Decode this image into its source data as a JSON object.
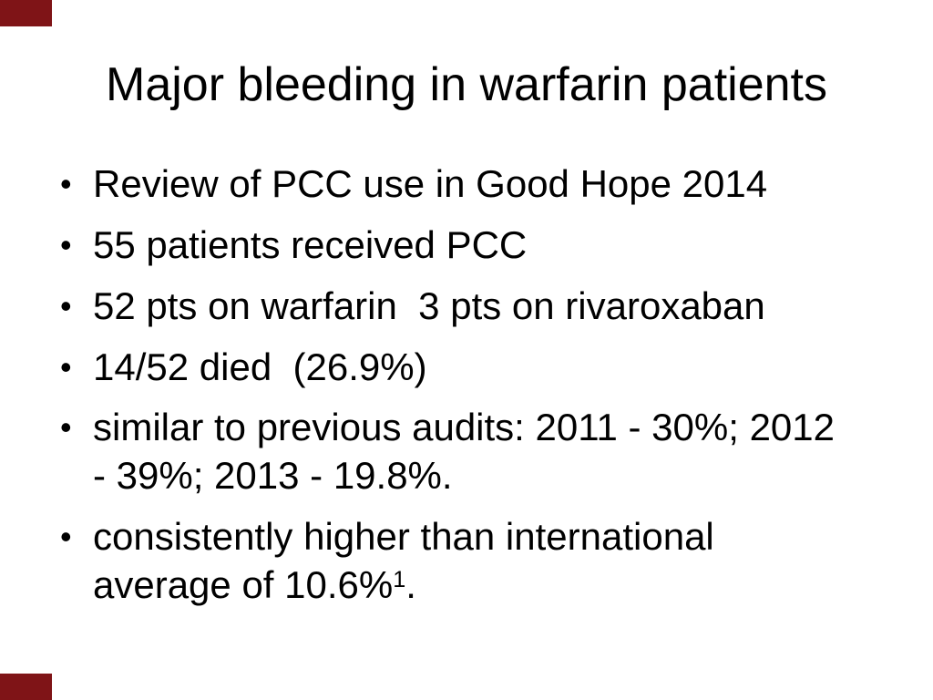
{
  "slide": {
    "title": "Major bleeding in warfarin patients",
    "bullet_char": "•",
    "bullets": [
      "Review of PCC use in Good Hope 2014",
      "55 patients received PCC",
      "52 pts on warfarin  3 pts on rivaroxaban",
      "14/52 died  (26.9%)",
      "similar to previous audits: 2011 - 30%; 2012 - 39%; 2013 - 19.8%.",
      "consistently higher than international average of 10.6%"
    ],
    "footnote_marker": "1",
    "footnote_tail": ".",
    "colors": {
      "accent": "#7f1417",
      "text": "#000000",
      "background": "#ffffff"
    }
  }
}
